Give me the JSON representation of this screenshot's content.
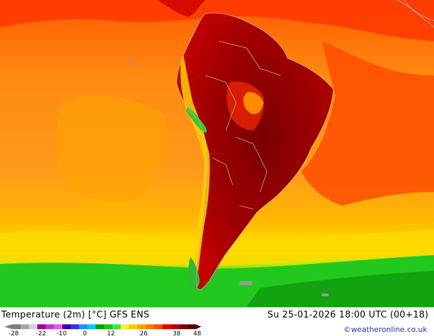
{
  "header": {
    "title": "Temperature (2m) [°C] GFS ENS",
    "timestamp": "Su 25-01-2026 18:00 UTC (00+18)",
    "credit": "©weatheronline.co.uk"
  },
  "legend": {
    "ticks": [
      "-28",
      "-22",
      "-10",
      "0",
      "12",
      "26",
      "38",
      "48"
    ],
    "swatches": [
      "#7f7f7f",
      "#a8a8a8",
      "#d2d2d2",
      "#9b009b",
      "#cc33cc",
      "#ee55ee",
      "#3a00b4",
      "#3232ff",
      "#2a8cff",
      "#00c8ff",
      "#00a000",
      "#14c814",
      "#42e642",
      "#ffeb3c",
      "#ffc800",
      "#ffa000",
      "#ff7800",
      "#ff4a00",
      "#e60000",
      "#b90000",
      "#8c0000",
      "#5a0000"
    ]
  },
  "colors": {
    "ocean_warm": "#ff9a1a",
    "ocean_hot": "#ff4d00",
    "ocean_cool": "#ffd000",
    "land_hot": "#c00000",
    "land_extreme": "#8a0000",
    "cold_south": "#22c81e",
    "coastline": "#b0b0b0"
  }
}
